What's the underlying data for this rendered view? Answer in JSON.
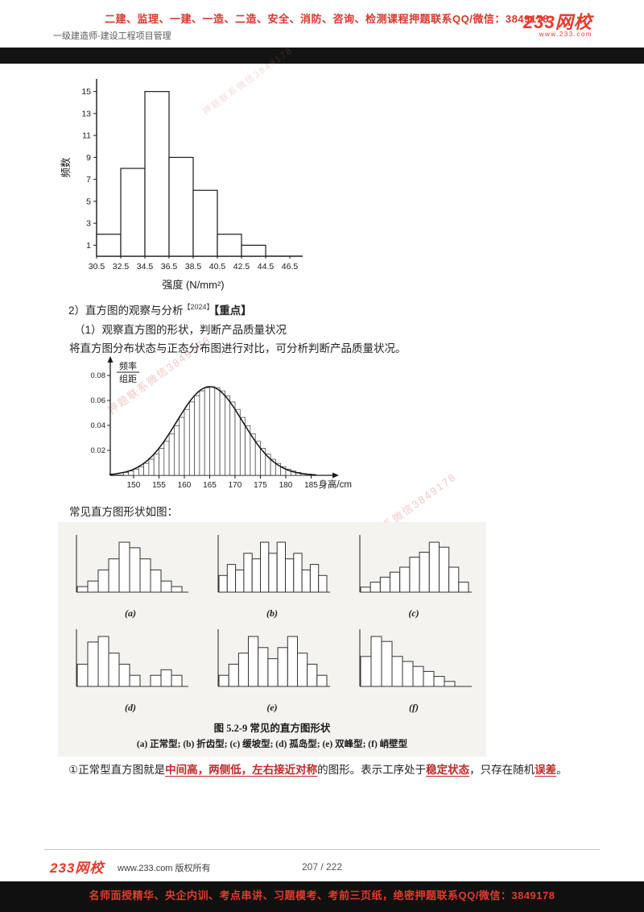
{
  "header": {
    "promo": "二建、监理、一建、一造、二造、安全、消防、咨询、检测课程押题联系QQ/微信：3849178",
    "subtitle": "一级建造师-建设工程项目管理",
    "logo": {
      "num": "233",
      "suffix": "网校",
      "site": "www.233.com"
    }
  },
  "content": {
    "observe": {
      "prefix": "2）直方图的观察与分析",
      "sup": "【2024】",
      "tag": "【重点】"
    },
    "line_1": "（1）观察直方图的形状，判断产品质量状况",
    "line_2": "将直方图分布状态与正态分布图进行对比，可分析判断产品质量状况。",
    "line_3": "常见直方图形状如图：",
    "paragraph_segments": [
      {
        "t": "①正常型直方图就是",
        "em": false
      },
      {
        "t": "中间高，两侧低，",
        "em": true
      },
      {
        "t": "左右接近对称",
        "em": true
      },
      {
        "t": "的图形。表示工序处于",
        "em": false
      },
      {
        "t": "稳定状态",
        "em": true
      },
      {
        "t": "，只存在随机",
        "em": false
      },
      {
        "t": "误差",
        "em": true
      },
      {
        "t": "。",
        "em": false
      }
    ]
  },
  "watermark": "押题联系微信3849178",
  "footer": {
    "logo": {
      "num": "233",
      "suffix": "网校"
    },
    "copyright": "www.233.com 版权所有",
    "page": "207 / 222",
    "promo": "名师面授精华、央企内训、考点串讲、习题模考、考前三页纸，绝密押题联系QQ/微信：3849178"
  },
  "chart_data": [
    {
      "type": "bar",
      "title": "",
      "ylabel": "频数",
      "xlabel": "强度 (N/mm²)",
      "xtick_labels": [
        "30.5",
        "32.5",
        "34.5",
        "36.5",
        "38.5",
        "40.5",
        "42.5",
        "44.5",
        "46.5"
      ],
      "values": [
        2,
        8,
        15,
        9,
        6,
        2,
        1,
        0
      ],
      "yticks": [
        1,
        3,
        5,
        7,
        9,
        11,
        13,
        15
      ],
      "ylim": [
        0,
        16
      ],
      "grid": false
    },
    {
      "type": "area",
      "title": "",
      "ylabel": "频率/组距",
      "xlabel": "身高/cm",
      "xticks": [
        150,
        155,
        160,
        165,
        170,
        175,
        180,
        185
      ],
      "yticks": [
        0.02,
        0.04,
        0.06,
        0.08
      ],
      "ylim": [
        0,
        0.085
      ],
      "bars": {
        "x_start": 148,
        "width": 1,
        "values": [
          0.0023,
          0.0034,
          0.005,
          0.007,
          0.0096,
          0.0129,
          0.017,
          0.0217,
          0.0272,
          0.0333,
          0.0398,
          0.0464,
          0.0528,
          0.0588,
          0.0638,
          0.0677,
          0.0702,
          0.071,
          0.0702,
          0.0677,
          0.0638,
          0.0588,
          0.0528,
          0.0464,
          0.0398,
          0.0333,
          0.0272,
          0.0217,
          0.017,
          0.0129,
          0.0096,
          0.007,
          0.005,
          0.0034,
          0.0023,
          0.0015,
          0.001
        ]
      },
      "curve": {
        "shape": "normal",
        "mean": 165,
        "sd": 6.5,
        "peak": 0.071
      },
      "grid": false
    },
    {
      "type": "bar",
      "subtype": "small-multiples",
      "caption_title": "图 5.2-9  常见的直方图形状",
      "caption_sub": "(a) 正常型; (b) 折齿型; (c) 缓坡型; (d) 孤岛型; (e) 双峰型; (f) 峭壁型",
      "panels": [
        {
          "key": "a",
          "label": "(a)",
          "name": "正常型",
          "values": [
            1,
            2,
            4,
            6,
            9,
            8,
            6,
            4,
            2,
            1
          ]
        },
        {
          "key": "b",
          "label": "(b)",
          "name": "折齿型",
          "values": [
            3,
            5,
            4,
            7,
            6,
            9,
            7,
            9,
            6,
            7,
            4,
            5,
            3
          ]
        },
        {
          "key": "c",
          "label": "(c)",
          "name": "缓坡型",
          "values": [
            1,
            2,
            3,
            4,
            5,
            7,
            8,
            10,
            9,
            5,
            2
          ]
        },
        {
          "key": "d",
          "label": "(d)",
          "name": "孤岛型",
          "values": [
            4,
            8,
            9,
            6,
            4,
            2,
            0,
            2,
            3,
            2
          ]
        },
        {
          "key": "e",
          "label": "(e)",
          "name": "双峰型",
          "values": [
            2,
            4,
            6,
            9,
            7,
            5,
            7,
            9,
            6,
            4,
            2
          ]
        },
        {
          "key": "f",
          "label": "(f)",
          "name": "峭壁型",
          "values": [
            6,
            10,
            9,
            6,
            5,
            4,
            3,
            2,
            1
          ]
        }
      ]
    }
  ]
}
